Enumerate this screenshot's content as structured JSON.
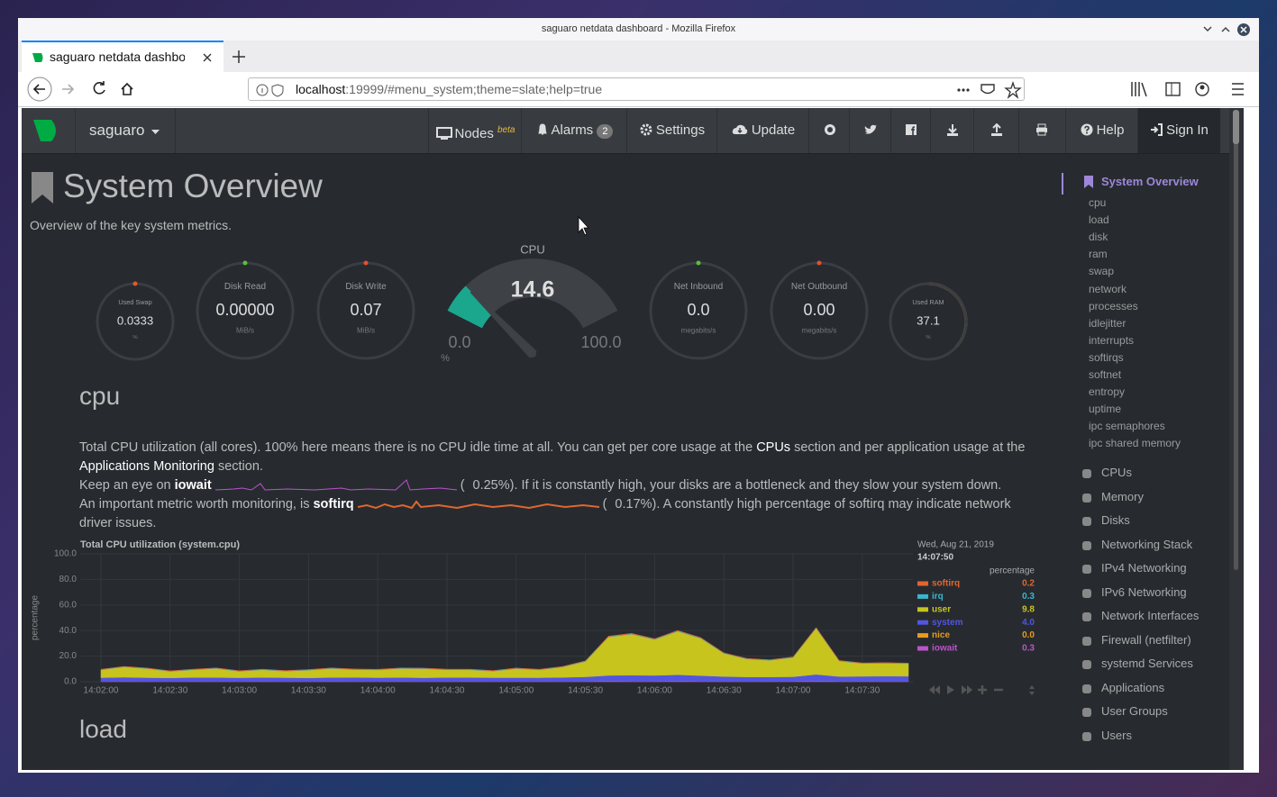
{
  "window": {
    "title": "saguaro netdata dashboard - Mozilla Firefox"
  },
  "tab": {
    "title": "saguaro netdata dashboard"
  },
  "url": {
    "host": "localhost",
    "rest": ":19999/#menu_system;theme=slate;help=true"
  },
  "navbar": {
    "hostname": "saguaro",
    "nodes": "Nodes",
    "nodes_badge": "beta",
    "alarms": "Alarms",
    "alarms_count": "2",
    "settings": "Settings",
    "update": "Update",
    "help": "Help",
    "sign_in": "Sign In"
  },
  "header": {
    "title": "System Overview",
    "subtitle": "Overview of the key system metrics."
  },
  "gauges": [
    {
      "title": "Used Swap",
      "value": "0.0333",
      "unit": "%"
    },
    {
      "title": "Disk Read",
      "value": "0.00000",
      "unit": "MiB/s"
    },
    {
      "title": "Disk Write",
      "value": "0.07",
      "unit": "MiB/s"
    },
    {
      "title": "Net Inbound",
      "value": "0.0",
      "unit": "megabits/s"
    },
    {
      "title": "Net Outbound",
      "value": "0.00",
      "unit": "megabits/s"
    },
    {
      "title": "Used RAM",
      "value": "37.1",
      "unit": "%"
    }
  ],
  "cpu_gauge": {
    "title": "CPU",
    "value": 14.6,
    "min": {
      "value": 0,
      "label": "0.0"
    },
    "max": {
      "value": 100,
      "label": "100.0"
    },
    "unit": "%"
  },
  "cpu_section": {
    "heading": "cpu",
    "p1_a": "Total CPU utilization (all cores). 100% here means there is no CPU idle time at all. You can get per core usage at the ",
    "p1_link1": "CPUs",
    "p1_b": " section and per application usage at the ",
    "p1_link2": "Applications Monitoring",
    "p1_c": " section.",
    "p2_a": "Keep an eye on ",
    "p2_key": "iowait",
    "p2_open": "(",
    "p2_value": "0.25%",
    "p2_b": "). If it is constantly high, your disks are a bottleneck and they slow your system down.",
    "p3_a": "An important metric worth monitoring, is ",
    "p3_key": "softirq",
    "p3_open": "(",
    "p3_value": "0.17%",
    "p3_b": "). A constantly high percentage of softirq may indicate network driver issues."
  },
  "load_heading": "load",
  "chart_data": {
    "type": "area",
    "title": "Total CPU utilization (system.cpu)",
    "y_label": "percentage",
    "legend_date": "Wed, Aug 21, 2019",
    "legend_time": "14:07:50",
    "legend_unit": "percentage",
    "x": [
      "14:02:00",
      null,
      null,
      "14:02:30",
      null,
      null,
      "14:03:00",
      null,
      null,
      "14:03:30",
      null,
      null,
      "14:04:00",
      null,
      null,
      "14:04:30",
      null,
      null,
      "14:05:00",
      null,
      null,
      "14:05:30",
      null,
      null,
      "14:06:00",
      null,
      null,
      "14:06:30",
      null,
      null,
      "14:07:00",
      null,
      null,
      "14:07:30",
      null,
      null
    ],
    "ylim": [
      0,
      100
    ],
    "yticks": [
      {
        "value": 0,
        "label": "0.0"
      },
      {
        "value": 20,
        "label": "20.0"
      },
      {
        "value": 40,
        "label": "40.0"
      },
      {
        "value": 60,
        "label": "60.0"
      },
      {
        "value": 80,
        "label": "80.0"
      },
      {
        "value": 100,
        "label": "100.0"
      }
    ],
    "grid": true,
    "series": [
      {
        "name": "softirq",
        "color": "#e0662e",
        "current": 0.2,
        "values": [
          0.2,
          0.2,
          0.2,
          0.2,
          0.2,
          0.2,
          0.2,
          0.2,
          0.2,
          0.2,
          0.2,
          0.2,
          0.2,
          0.2,
          0.2,
          0.2,
          0.2,
          0.2,
          0.2,
          0.2,
          0.2,
          0.2,
          0.3,
          0.3,
          0.3,
          0.3,
          0.3,
          0.2,
          0.2,
          0.2,
          0.2,
          0.3,
          0.2,
          0.2,
          0.2,
          0.2
        ]
      },
      {
        "name": "irq",
        "color": "#3bb5cf",
        "current": 0.3,
        "values": [
          0.3,
          0.3,
          0.3,
          0.3,
          0.3,
          0.3,
          0.3,
          0.3,
          0.3,
          0.3,
          0.3,
          0.3,
          0.3,
          0.3,
          0.3,
          0.3,
          0.3,
          0.3,
          0.3,
          0.3,
          0.3,
          0.3,
          0.4,
          0.4,
          0.4,
          0.4,
          0.4,
          0.3,
          0.3,
          0.3,
          0.3,
          0.4,
          0.3,
          0.3,
          0.3,
          0.3
        ]
      },
      {
        "name": "user",
        "color": "#c7c41e",
        "current": 9.8,
        "values": [
          6,
          8,
          7,
          5,
          6,
          7,
          5,
          6,
          5,
          6,
          7,
          6,
          6,
          7,
          7,
          6,
          6,
          5,
          7,
          6,
          8,
          12,
          30,
          32,
          28,
          34,
          29,
          18,
          14,
          13,
          15,
          36,
          12,
          10,
          10,
          9.8
        ]
      },
      {
        "name": "system",
        "color": "#5355e0",
        "current": {
          "value": 4,
          "label": "4.0"
        },
        "values": [
          3,
          3.2,
          3,
          2.8,
          3,
          3.1,
          2.9,
          3,
          3,
          2.8,
          3,
          3.2,
          3,
          3,
          2.9,
          3.1,
          3,
          3,
          3,
          2.9,
          3.2,
          3.5,
          4.5,
          4.8,
          4.6,
          5,
          4.5,
          3.8,
          3.5,
          3.4,
          3.6,
          5.2,
          3.8,
          3.9,
          4.1,
          4
        ]
      },
      {
        "name": "nice",
        "color": "#ea9a1c",
        "current": {
          "value": 0,
          "label": "0.0"
        },
        "values": [
          0,
          0,
          0,
          0,
          0,
          0,
          0,
          0,
          0,
          0,
          0,
          0,
          0,
          0,
          0,
          0,
          0,
          0,
          0,
          0,
          0,
          0,
          0,
          0,
          0,
          0,
          0,
          0,
          0,
          0,
          0,
          0,
          0,
          0,
          0,
          0
        ]
      },
      {
        "name": "iowait",
        "color": "#bd52cc",
        "current": 0.3,
        "values": [
          0.2,
          0.3,
          0.2,
          0.2,
          0.3,
          0.2,
          0.2,
          0.3,
          0.2,
          0.2,
          0.3,
          0.2,
          0.2,
          0.3,
          0.2,
          0.2,
          0.3,
          0.2,
          0.2,
          0.3,
          0.2,
          0.3,
          0.4,
          0.3,
          0.3,
          0.4,
          0.3,
          0.3,
          0.2,
          0.3,
          0.3,
          0.5,
          0.3,
          0.3,
          0.3,
          0.3
        ]
      }
    ]
  },
  "sidebar": {
    "active": "System Overview",
    "subitems": [
      "cpu",
      "load",
      "disk",
      "ram",
      "swap",
      "network",
      "processes",
      "idlejitter",
      "interrupts",
      "softirqs",
      "softnet",
      "entropy",
      "uptime",
      "ipc semaphores",
      "ipc shared memory"
    ],
    "sections": [
      "CPUs",
      "Memory",
      "Disks",
      "Networking Stack",
      "IPv4 Networking",
      "IPv6 Networking",
      "Network Interfaces",
      "Firewall (netfilter)",
      "systemd Services",
      "Applications",
      "User Groups",
      "Users"
    ]
  }
}
